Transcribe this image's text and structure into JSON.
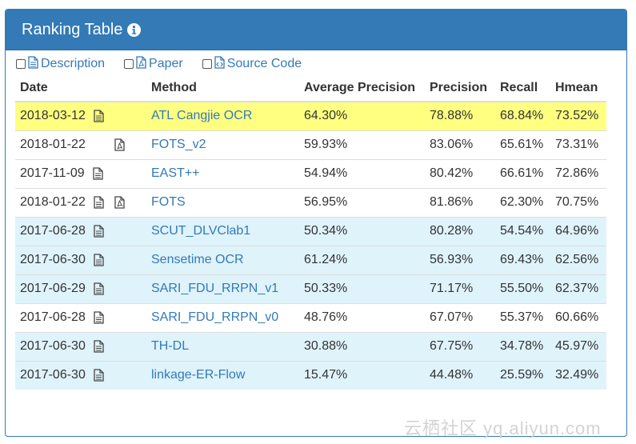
{
  "panel": {
    "title": "Ranking Table"
  },
  "filters": [
    {
      "label": "Description",
      "icon": "description-icon"
    },
    {
      "label": "Paper",
      "icon": "pdf-icon"
    },
    {
      "label": "Source Code",
      "icon": "source-code-icon"
    }
  ],
  "table": {
    "headers": {
      "date": "Date",
      "method": "Method",
      "avg_precision": "Average Precision",
      "precision": "Precision",
      "recall": "Recall",
      "hmean": "Hmean"
    },
    "rows": [
      {
        "date": "2018-03-12",
        "method": "ATL Cangjie OCR",
        "ap": "64.30%",
        "p": "78.88%",
        "r": "68.84%",
        "h": "73.52%",
        "desc": true,
        "pdf": false,
        "style": "highlight"
      },
      {
        "date": "2018-01-22",
        "method": "FOTS_v2",
        "ap": "59.93%",
        "p": "83.06%",
        "r": "65.61%",
        "h": "73.31%",
        "desc": false,
        "pdf": true,
        "style": "plain"
      },
      {
        "date": "2017-11-09",
        "method": "EAST++",
        "ap": "54.94%",
        "p": "80.42%",
        "r": "66.61%",
        "h": "72.86%",
        "desc": true,
        "pdf": false,
        "style": "plain"
      },
      {
        "date": "2018-01-22",
        "method": "FOTS",
        "ap": "56.95%",
        "p": "81.86%",
        "r": "62.30%",
        "h": "70.75%",
        "desc": true,
        "pdf": true,
        "style": "plain"
      },
      {
        "date": "2017-06-28",
        "method": "SCUT_DLVClab1",
        "ap": "50.34%",
        "p": "80.28%",
        "r": "54.54%",
        "h": "64.96%",
        "desc": true,
        "pdf": false,
        "style": "info"
      },
      {
        "date": "2017-06-30",
        "method": "Sensetime OCR",
        "ap": "61.24%",
        "p": "56.93%",
        "r": "69.43%",
        "h": "62.56%",
        "desc": true,
        "pdf": false,
        "style": "info"
      },
      {
        "date": "2017-06-29",
        "method": "SARI_FDU_RRPN_v1",
        "ap": "50.33%",
        "p": "71.17%",
        "r": "55.50%",
        "h": "62.37%",
        "desc": true,
        "pdf": false,
        "style": "info"
      },
      {
        "date": "2017-06-28",
        "method": "SARI_FDU_RRPN_v0",
        "ap": "48.76%",
        "p": "67.07%",
        "r": "55.37%",
        "h": "60.66%",
        "desc": true,
        "pdf": false,
        "style": "plain"
      },
      {
        "date": "2017-06-30",
        "method": "TH-DL",
        "ap": "30.88%",
        "p": "67.75%",
        "r": "34.78%",
        "h": "45.97%",
        "desc": true,
        "pdf": false,
        "style": "info"
      },
      {
        "date": "2017-06-30",
        "method": "linkage-ER-Flow",
        "ap": "15.47%",
        "p": "44.48%",
        "r": "25.59%",
        "h": "32.49%",
        "desc": true,
        "pdf": false,
        "style": "info"
      }
    ]
  },
  "watermark": "云栖社区 yq.aliyun.com",
  "colors": {
    "primary": "#337ab7",
    "highlight_row": "#ffff80",
    "info_row": "#dff3fb"
  }
}
